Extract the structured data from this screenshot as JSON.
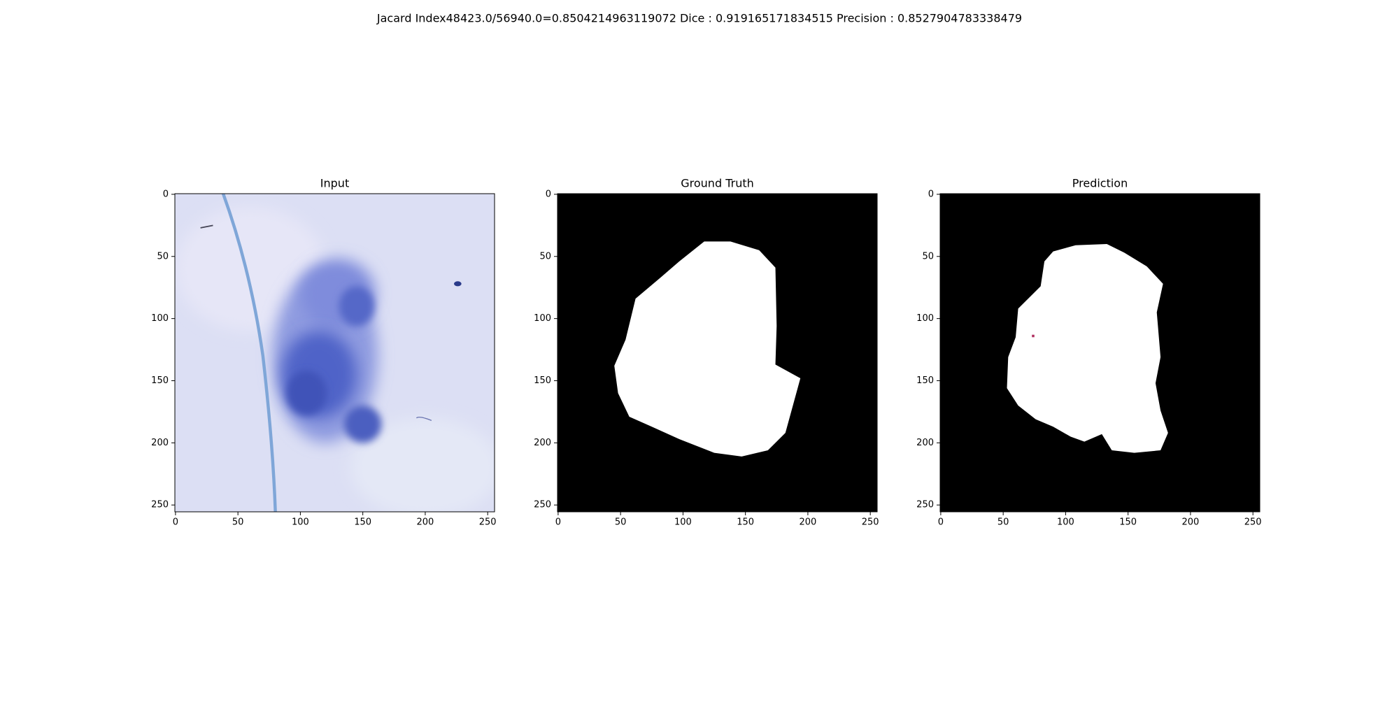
{
  "title": "Jacard Index48423.0/56940.0=0.8504214963119072 Dice : 0.919165171834515 Precision : 0.8527904783338479",
  "chart_data": [
    {
      "type": "image",
      "title": "Input",
      "xlim": [
        -0.5,
        255.5
      ],
      "ylim": [
        255.5,
        -0.5
      ],
      "xticks": [
        0,
        50,
        100,
        150,
        200,
        250
      ],
      "yticks": [
        0,
        50,
        100,
        150,
        200,
        250
      ]
    },
    {
      "type": "image",
      "title": "Ground Truth",
      "xlim": [
        -0.5,
        255.5
      ],
      "ylim": [
        255.5,
        -0.5
      ],
      "xticks": [
        0,
        50,
        100,
        150,
        200,
        250
      ],
      "yticks": [
        0,
        50,
        100,
        150,
        200,
        250
      ]
    },
    {
      "type": "image",
      "title": "Prediction",
      "xlim": [
        -0.5,
        255.5
      ],
      "ylim": [
        255.5,
        -0.5
      ],
      "xticks": [
        0,
        50,
        100,
        150,
        200,
        250
      ],
      "yticks": [
        0,
        50,
        100,
        150,
        200,
        250
      ]
    }
  ]
}
